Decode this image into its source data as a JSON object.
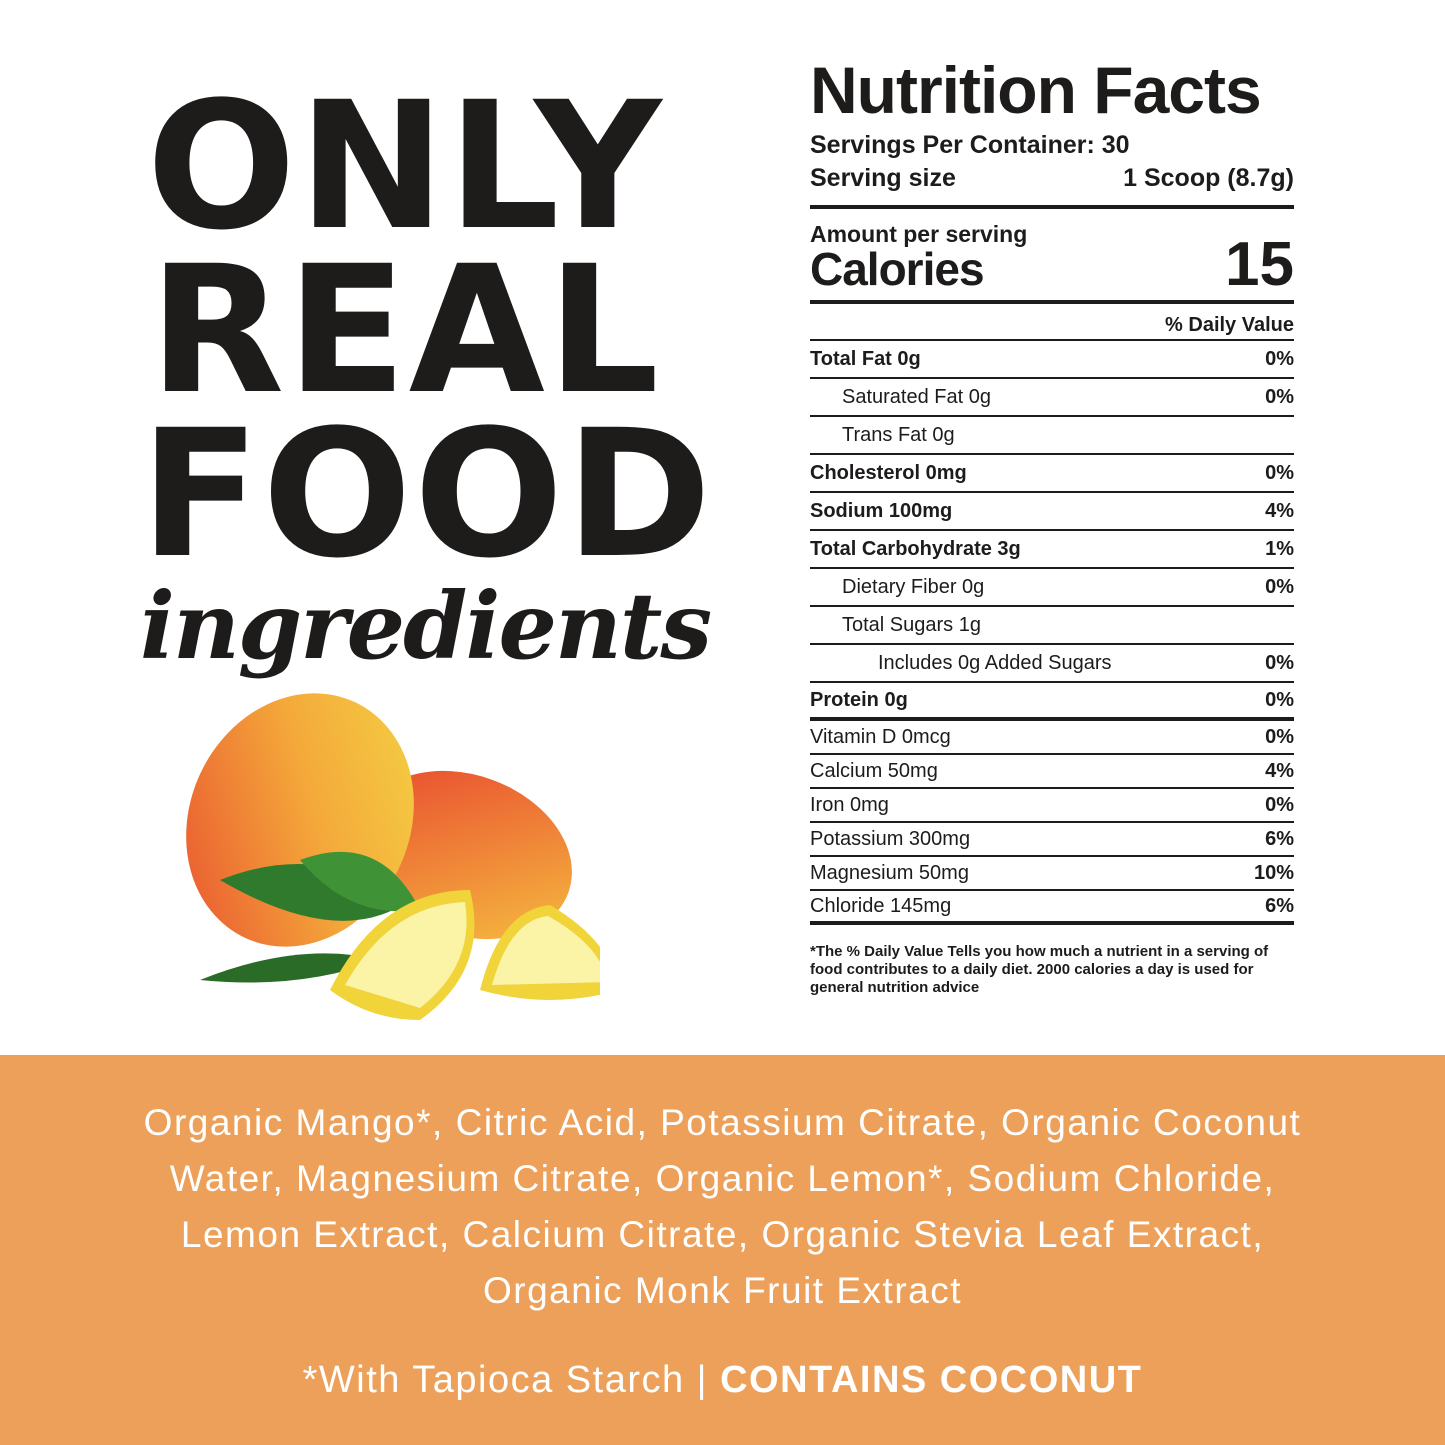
{
  "headline": {
    "line1": "ONLY",
    "line2": "REAL",
    "line3": "FOOD",
    "script": "ingredients"
  },
  "nutrition": {
    "title": "Nutrition Facts",
    "servings_per_container": "Servings Per Container: 30",
    "serving_size_label": "Serving size",
    "serving_size_value": "1 Scoop (8.7g)",
    "amount_per_serving": "Amount per serving",
    "calories_label": "Calories",
    "calories_value": "15",
    "daily_value_header": "% Daily Value",
    "rows": [
      {
        "label": "Total Fat 0g",
        "pct": "0%"
      },
      {
        "label": "Saturated Fat 0g",
        "pct": "0%"
      },
      {
        "label": "Trans Fat 0g",
        "pct": ""
      },
      {
        "label": "Cholesterol 0mg",
        "pct": "0%"
      },
      {
        "label": "Sodium 100mg",
        "pct": "4%"
      },
      {
        "label": "Total Carbohydrate 3g",
        "pct": "1%"
      },
      {
        "label": "Dietary Fiber 0g",
        "pct": "0%"
      },
      {
        "label": "Total Sugars  1g",
        "pct": ""
      },
      {
        "label": "Includes 0g Added Sugars",
        "pct": "0%"
      },
      {
        "label": "Protein 0g",
        "pct": "0%"
      }
    ],
    "vitamins": [
      {
        "label": "Vitamin D 0mcg",
        "pct": "0%"
      },
      {
        "label": "Calcium 50mg",
        "pct": "4%"
      },
      {
        "label": "Iron 0mg",
        "pct": "0%"
      },
      {
        "label": "Potassium 300mg",
        "pct": "6%"
      },
      {
        "label": "Magnesium 50mg",
        "pct": "10%"
      },
      {
        "label": "Chloride 145mg",
        "pct": "6%"
      }
    ],
    "footnote": "*The % Daily Value Tells you how much a nutrient in a serving of food contributes to a daily diet. 2000 calories a day is used for general nutrition advice"
  },
  "ingredients": {
    "text": "Organic Mango*, Citric Acid, Potassium Citrate, Organic Coconut Water, Magnesium Citrate, Organic Lemon*, Sodium Chloride, Lemon Extract, Calcium Citrate, Organic Stevia Leaf Extract, Organic Monk Fruit Extract",
    "note": "*With Tapioca Starch | ",
    "allergen": "CONTAINS COCONUT"
  },
  "colors": {
    "band": "#eda05a",
    "text": "#1e1b1b"
  }
}
